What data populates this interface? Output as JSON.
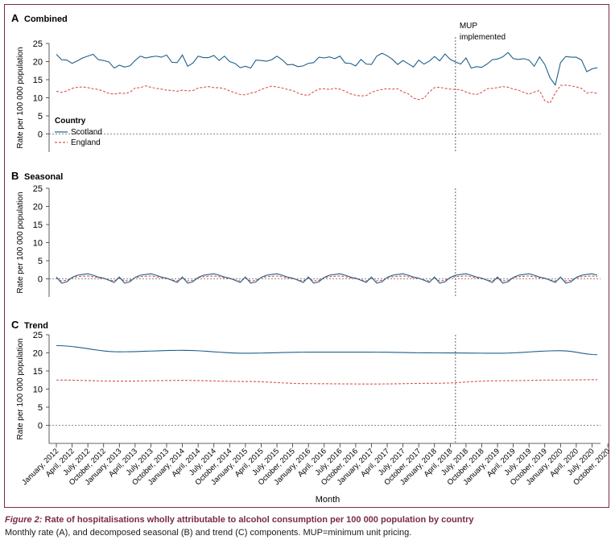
{
  "figure": {
    "caption_figure_label": "Figure 2:",
    "caption_title": "Rate of hospitalisations wholly attributable to alcohol consumption per 100 000 population by country",
    "caption_text": "Monthly rate (A), and decomposed seasonal (B) and trend (C) components. MUP=minimum unit pricing.",
    "x_axis_title": "Month",
    "mup_annotation_line1": "MUP",
    "mup_annotation_line2": "implemented",
    "colors": {
      "scotland": "#1f5f8b",
      "england": "#d9534f",
      "frame": "#7a2a4a",
      "mup_line": "#555555"
    }
  },
  "chart_data": [
    {
      "type": "line",
      "panel_letter": "A",
      "title": "Combined",
      "ylabel": "Rate per 100 000 population",
      "ylim": [
        -5,
        25
      ],
      "yticks": [
        0,
        5,
        10,
        15,
        20,
        25
      ],
      "legend": {
        "title": "Country",
        "position": "left",
        "entries": [
          "Scotland",
          "England"
        ]
      },
      "series": [
        {
          "name": "Scotland",
          "values": [
            22.0,
            20.5,
            20.4,
            19.5,
            20.2,
            21.0,
            21.5,
            22.0,
            20.5,
            20.3,
            19.9,
            18.2,
            19.0,
            18.5,
            18.8,
            20.3,
            21.5,
            21.0,
            21.3,
            21.5,
            21.2,
            21.8,
            19.8,
            19.7,
            21.8,
            18.7,
            19.6,
            21.5,
            21.1,
            21.1,
            21.7,
            20.3,
            21.5,
            20.0,
            19.5,
            18.3,
            18.7,
            18.2,
            20.4,
            20.3,
            20.1,
            20.5,
            21.5,
            20.5,
            19.1,
            19.2,
            18.6,
            18.8,
            19.5,
            19.7,
            21.2,
            21.0,
            21.3,
            20.8,
            21.5,
            19.6,
            19.5,
            18.8,
            20.6,
            19.3,
            19.2,
            21.5,
            22.3,
            21.6,
            20.6,
            19.2,
            20.3,
            19.4,
            18.5,
            20.4,
            19.3,
            20.1,
            21.4,
            20.2,
            22.1,
            20.6,
            19.9,
            19.3,
            21.0,
            18.2,
            18.6,
            18.4,
            19.3,
            20.5,
            20.7,
            21.3,
            22.5,
            20.8,
            20.6,
            20.8,
            20.4,
            18.7,
            21.3,
            19.2,
            15.5,
            13.5,
            19.7,
            21.4,
            21.2,
            21.2,
            20.4,
            17.2,
            18.0,
            18.3
          ]
        },
        {
          "name": "England",
          "values": [
            11.8,
            11.5,
            11.9,
            12.6,
            12.9,
            13.0,
            12.8,
            12.5,
            12.3,
            11.8,
            11.2,
            11.0,
            11.3,
            11.2,
            11.5,
            12.7,
            12.8,
            13.3,
            12.9,
            12.6,
            12.4,
            12.1,
            12.0,
            11.8,
            12.1,
            11.9,
            12.0,
            12.7,
            12.9,
            13.1,
            12.8,
            12.8,
            12.5,
            11.9,
            11.4,
            10.9,
            10.8,
            11.3,
            11.6,
            12.3,
            12.8,
            13.2,
            13.0,
            12.7,
            12.3,
            12.0,
            11.3,
            10.8,
            10.7,
            11.7,
            12.4,
            12.5,
            12.3,
            12.6,
            12.4,
            11.8,
            11.1,
            10.7,
            10.5,
            10.6,
            11.5,
            12.0,
            12.3,
            12.5,
            12.4,
            12.5,
            11.6,
            11.1,
            9.9,
            9.5,
            9.9,
            11.6,
            12.8,
            12.9,
            12.6,
            12.4,
            12.3,
            12.2,
            11.6,
            11.1,
            10.9,
            11.5,
            12.5,
            12.6,
            12.8,
            13.1,
            12.9,
            12.4,
            12.1,
            11.5,
            11.0,
            11.6,
            12.0,
            9.2,
            8.5,
            11.3,
            13.4,
            13.5,
            13.3,
            13.0,
            12.6,
            11.3,
            11.5,
            11.2
          ]
        }
      ]
    },
    {
      "type": "line",
      "panel_letter": "B",
      "title": "Seasonal",
      "ylabel": "Rate per 100 000 population",
      "ylim": [
        -5,
        25
      ],
      "yticks": [
        0,
        5,
        10,
        15,
        20,
        25
      ],
      "series": [
        {
          "name": "Scotland",
          "seasonal_values": [
            0.5,
            -1.2,
            -0.8,
            0.4,
            1.0,
            1.2,
            1.4,
            1.0,
            0.5,
            0.2,
            -0.4,
            -1.0
          ]
        },
        {
          "name": "England",
          "seasonal_values": [
            0.2,
            -0.6,
            -0.4,
            0.3,
            0.6,
            0.7,
            0.8,
            0.6,
            0.3,
            0.1,
            -0.3,
            -0.6
          ]
        }
      ]
    },
    {
      "type": "line",
      "panel_letter": "C",
      "title": "Trend",
      "ylabel": "Rate per 100 000 population",
      "ylim": [
        -5,
        25
      ],
      "yticks": [
        0,
        5,
        10,
        15,
        20,
        25
      ],
      "series": [
        {
          "name": "Scotland",
          "anchor_months": [
            0,
            12,
            24,
            36,
            48,
            60,
            72,
            84,
            96,
            103
          ],
          "anchor_values": [
            22.0,
            20.3,
            20.7,
            19.9,
            20.2,
            20.2,
            20.0,
            19.9,
            20.6,
            19.5
          ]
        },
        {
          "name": "England",
          "anchor_months": [
            0,
            12,
            24,
            36,
            48,
            60,
            72,
            84,
            96,
            103
          ],
          "anchor_values": [
            12.5,
            12.2,
            12.4,
            12.1,
            11.5,
            11.4,
            11.6,
            12.3,
            12.5,
            12.6
          ]
        }
      ]
    }
  ],
  "x_axis": {
    "n_months": 104,
    "mup_month_index": 76,
    "tick_labels": [
      "January, 2012",
      "April, 2012",
      "July, 2012",
      "October, 2012",
      "January, 2013",
      "April, 2013",
      "July, 2013",
      "October, 2013",
      "January, 2014",
      "April, 2014",
      "July, 2014",
      "October, 2014",
      "January, 2015",
      "April, 2015",
      "July, 2015",
      "October, 2015",
      "January, 2016",
      "April, 2016",
      "July, 2016",
      "October, 2016",
      "January, 2017",
      "April, 2017",
      "July, 2017",
      "October, 2017",
      "January, 2018",
      "April, 2018",
      "July, 2018",
      "October, 2018",
      "January, 2019",
      "April, 2019",
      "July, 2019",
      "October, 2019",
      "January, 2020",
      "April, 2020",
      "July, 2020",
      "October, 2020"
    ]
  }
}
